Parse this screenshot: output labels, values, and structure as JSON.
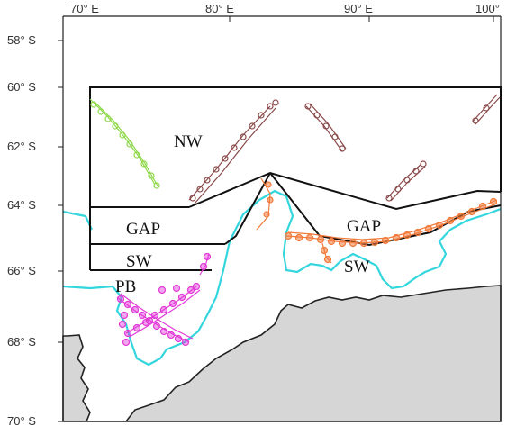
{
  "map": {
    "longitude_labels": [
      "70° E",
      "80° E",
      "90° E",
      "100°"
    ],
    "latitude_labels": [
      "58° S",
      "60° S",
      "62° S",
      "64° S",
      "66° S",
      "68° S",
      "70° S"
    ],
    "region_labels": {
      "nw": "NW",
      "gap_west": "GAP",
      "sw_west": "SW",
      "pb": "PB",
      "gap_east": "GAP",
      "sw_east": "SW"
    },
    "colors": {
      "land": "#d6d6d6",
      "coastline": "#222222",
      "ice_shelf_outline": "#33d6dd",
      "track_green": "#8fd94a",
      "track_brown": "#8a4a4a",
      "track_orange": "#f27a3a",
      "track_magenta": "#e23ad8",
      "boundary": "#111111"
    }
  }
}
